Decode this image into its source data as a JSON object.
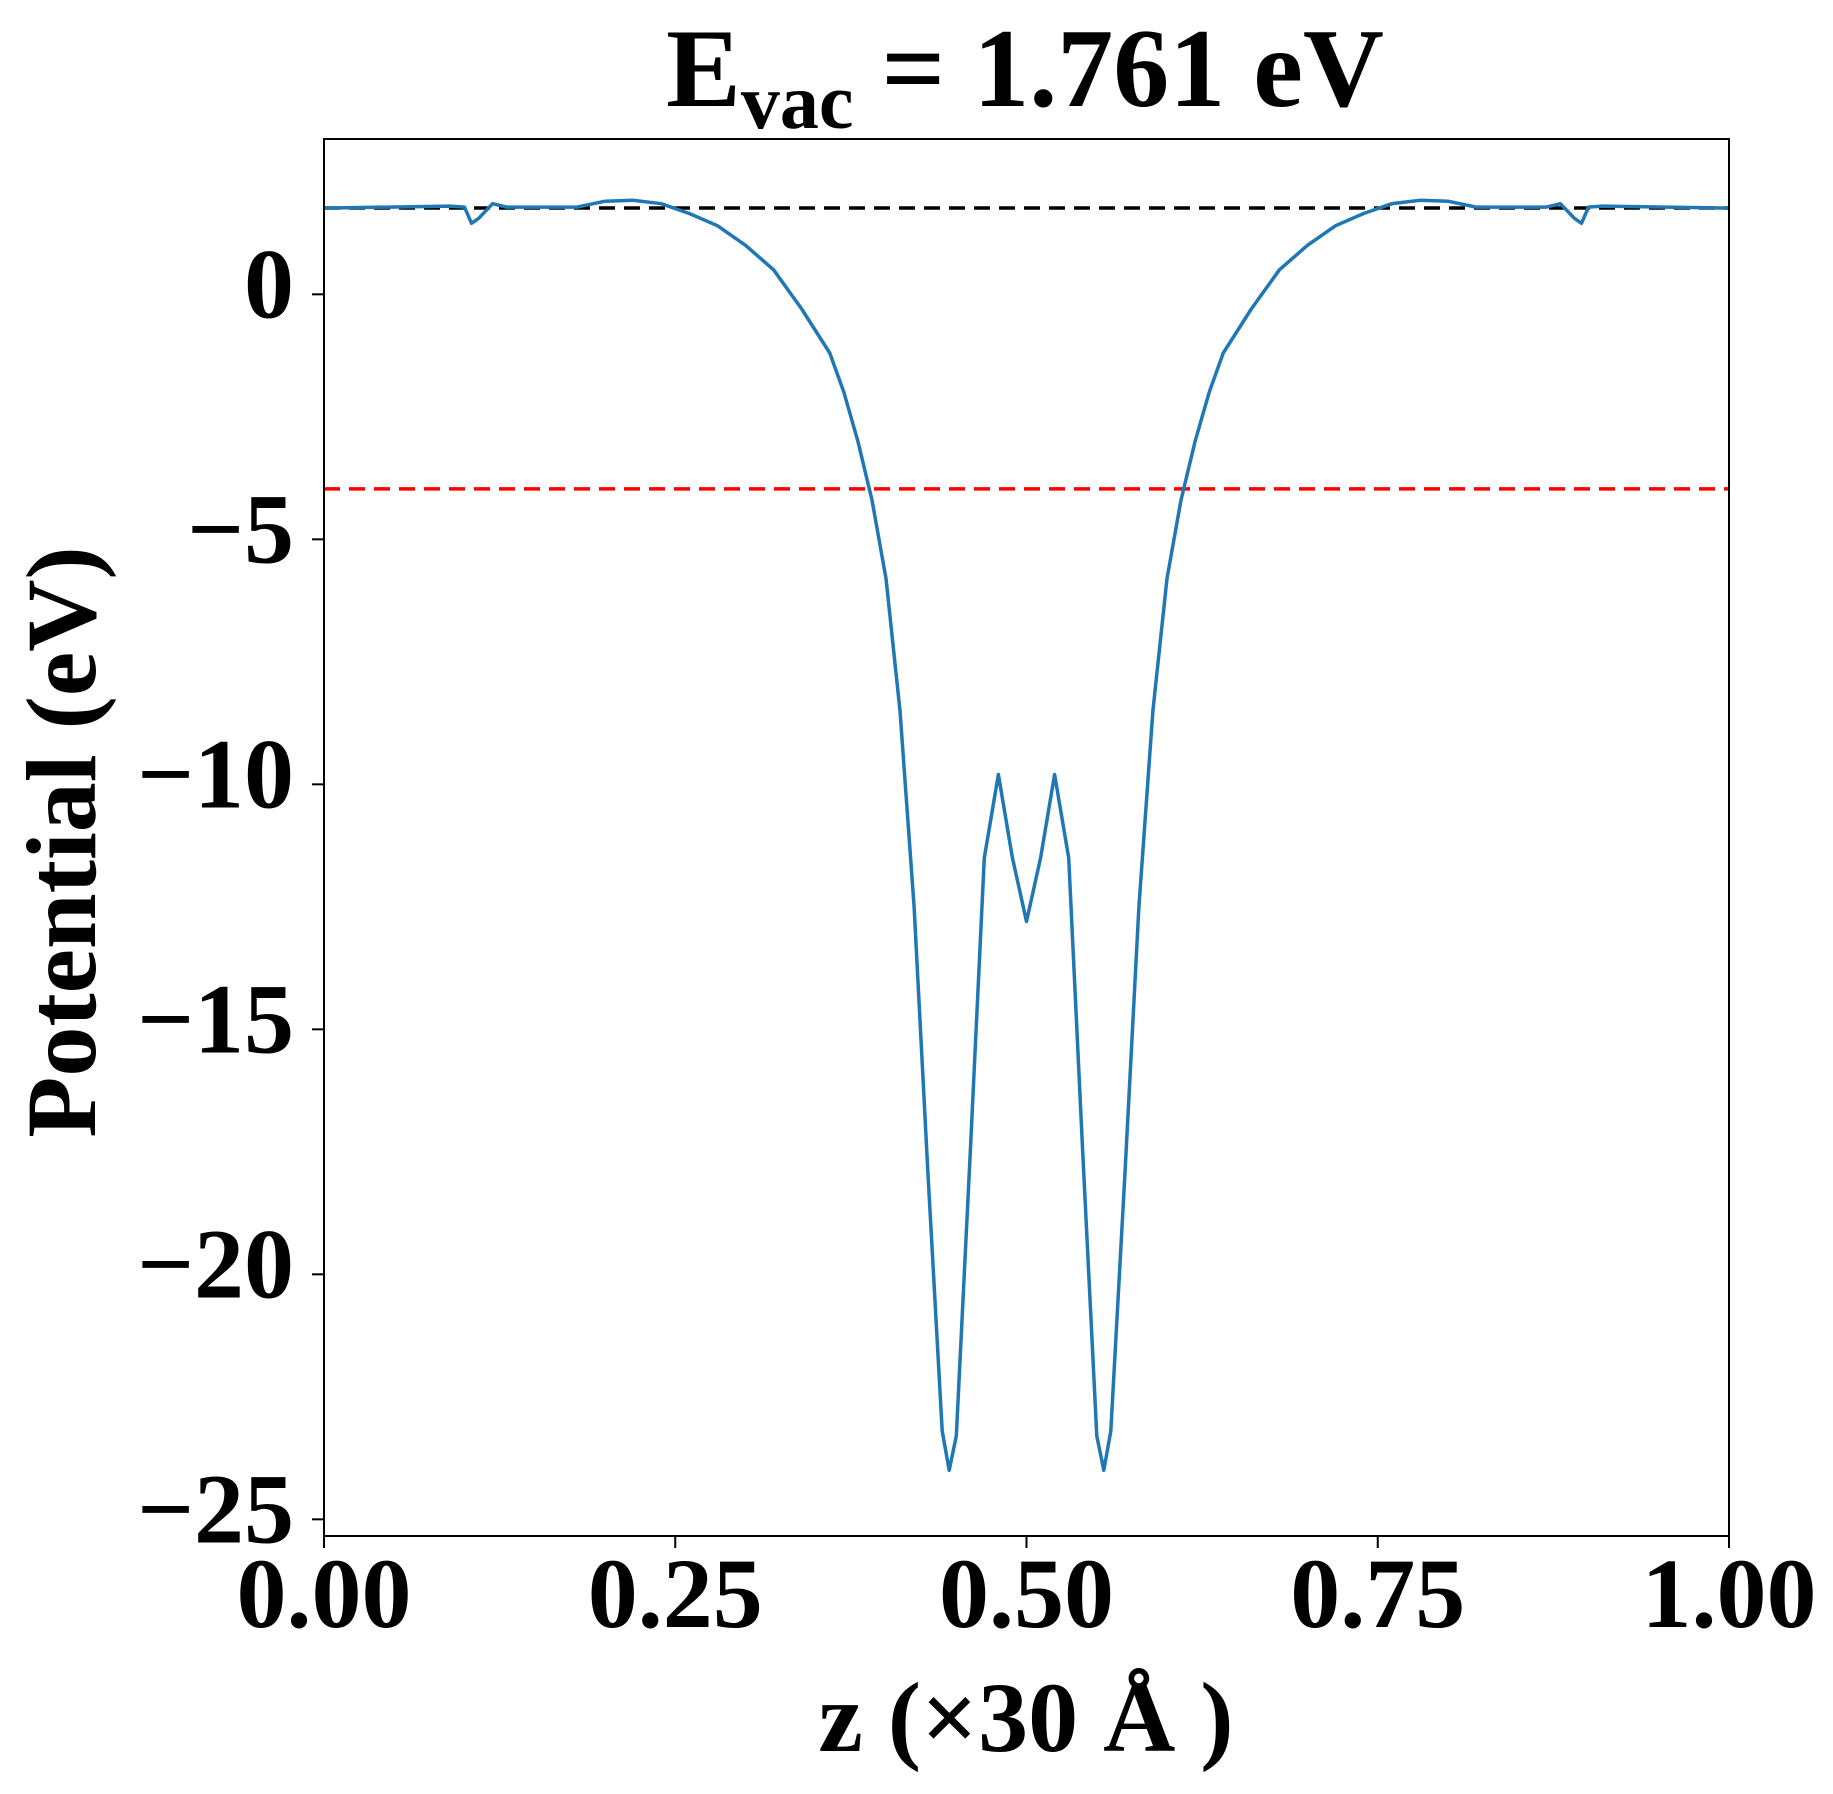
{
  "chart_data": {
    "type": "line",
    "title": {
      "main": "E",
      "sub": "vac",
      "rest": "= 1.761 eV"
    },
    "x_label": "z (×30 Å )",
    "y_label": "Potential (eV)",
    "x": [
      0,
      0.09,
      0.1,
      0.105,
      0.11,
      0.12,
      0.13,
      0.18,
      0.2,
      0.22,
      0.24,
      0.26,
      0.28,
      0.3,
      0.32,
      0.34,
      0.36,
      0.37,
      0.38,
      0.39,
      0.4,
      0.41,
      0.42,
      0.43,
      0.44,
      0.445,
      0.45,
      0.46,
      0.47,
      0.48,
      0.49,
      0.5,
      0.51,
      0.52,
      0.53,
      0.54,
      0.55,
      0.555,
      0.56,
      0.57,
      0.58,
      0.59,
      0.6,
      0.61,
      0.62,
      0.63,
      0.64,
      0.66,
      0.68,
      0.7,
      0.72,
      0.74,
      0.76,
      0.78,
      0.8,
      0.82,
      0.87,
      0.88,
      0.89,
      0.895,
      0.9,
      0.91,
      1.0
    ],
    "series": [
      {
        "color": "#1f77b4",
        "values": [
          1.76,
          1.8,
          1.78,
          1.45,
          1.55,
          1.85,
          1.78,
          1.78,
          1.9,
          1.92,
          1.85,
          1.65,
          1.4,
          1.0,
          0.5,
          -0.3,
          -1.2,
          -2.0,
          -3.0,
          -4.2,
          -5.8,
          -8.5,
          -12.5,
          -18,
          -23.2,
          -24.0,
          -23.3,
          -17.5,
          -11.5,
          -9.8,
          -11.5,
          -12.8,
          -11.5,
          -9.8,
          -11.5,
          -17.5,
          -23.3,
          -24.0,
          -23.2,
          -18,
          -12.5,
          -8.5,
          -5.8,
          -4.2,
          -3.0,
          -2.0,
          -1.2,
          -0.3,
          0.5,
          1.0,
          1.4,
          1.65,
          1.85,
          1.92,
          1.9,
          1.78,
          1.78,
          1.85,
          1.55,
          1.45,
          1.78,
          1.8,
          1.76
        ]
      }
    ],
    "hlines": [
      {
        "value": 1.761,
        "color": "#000000"
      },
      {
        "value": -3.97,
        "color": "#ff0000"
      }
    ],
    "xlim": [
      0,
      1
    ],
    "ylim": [
      -25.34,
      3.17
    ],
    "xticks": [
      {
        "value": 0,
        "label": "0.00"
      },
      {
        "value": 0.25,
        "label": "0.25"
      },
      {
        "value": 0.5,
        "label": "0.50"
      },
      {
        "value": 0.75,
        "label": "0.75"
      },
      {
        "value": 1,
        "label": "1.00"
      }
    ],
    "yticks": [
      0,
      {
        "value": -5,
        "label": "−5"
      },
      {
        "value": -10,
        "label": "−10"
      },
      {
        "value": -15,
        "label": "−15"
      },
      {
        "value": -20,
        "label": "−20"
      },
      {
        "value": -25,
        "label": "−25"
      }
    ]
  }
}
